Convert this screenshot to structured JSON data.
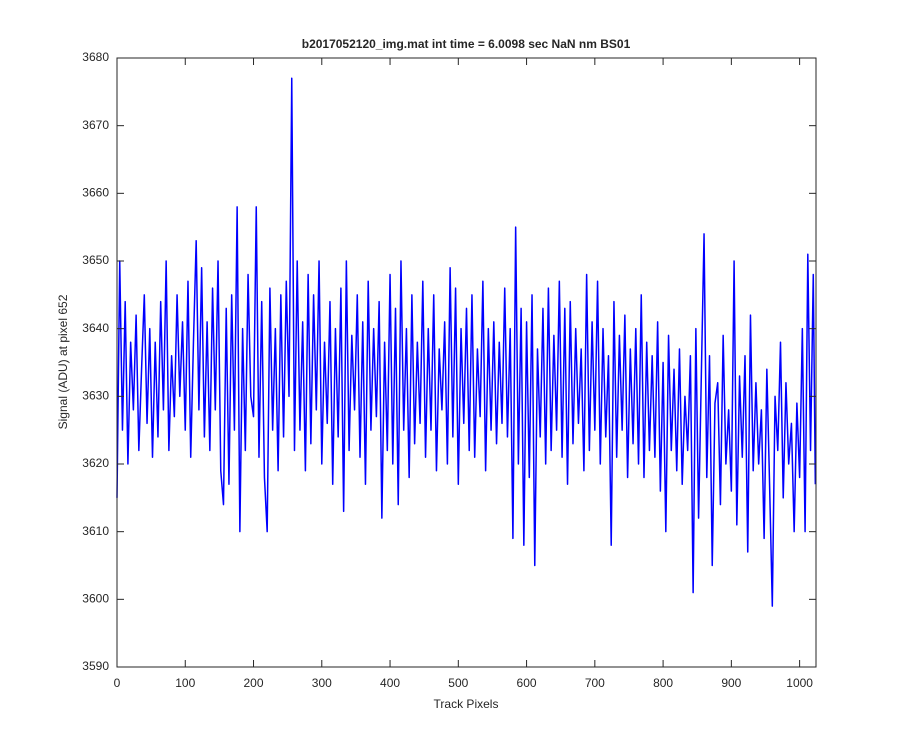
{
  "chart_data": {
    "type": "line",
    "title": "b2017052120_img.mat int time = 6.0098 sec  NaN nm BS01",
    "xlabel": "Track Pixels",
    "ylabel": "Signal (ADU) at pixel 652",
    "xlim": [
      0,
      1024
    ],
    "ylim": [
      3590,
      3680
    ],
    "xticks": [
      0,
      100,
      200,
      300,
      400,
      500,
      600,
      700,
      800,
      900,
      1000
    ],
    "yticks": [
      3590,
      3600,
      3610,
      3620,
      3630,
      3640,
      3650,
      3660,
      3670,
      3680
    ],
    "series": [
      {
        "color": "#0000ff",
        "x": [
          0,
          4,
          8,
          12,
          16,
          20,
          24,
          28,
          32,
          36,
          40,
          44,
          48,
          52,
          56,
          60,
          64,
          68,
          72,
          76,
          80,
          84,
          88,
          92,
          96,
          100,
          104,
          108,
          112,
          116,
          120,
          124,
          128,
          132,
          136,
          140,
          144,
          148,
          152,
          156,
          160,
          164,
          168,
          172,
          176,
          180,
          184,
          188,
          192,
          196,
          200,
          204,
          208,
          212,
          216,
          220,
          224,
          228,
          232,
          236,
          240,
          244,
          248,
          252,
          256,
          260,
          264,
          268,
          272,
          276,
          280,
          284,
          288,
          292,
          296,
          300,
          304,
          308,
          312,
          316,
          320,
          324,
          328,
          332,
          336,
          340,
          344,
          348,
          352,
          356,
          360,
          364,
          368,
          372,
          376,
          380,
          384,
          388,
          392,
          396,
          400,
          404,
          408,
          412,
          416,
          420,
          424,
          428,
          432,
          436,
          440,
          444,
          448,
          452,
          456,
          460,
          464,
          468,
          472,
          476,
          480,
          484,
          488,
          492,
          496,
          500,
          504,
          508,
          512,
          516,
          520,
          524,
          528,
          532,
          536,
          540,
          544,
          548,
          552,
          556,
          560,
          564,
          568,
          572,
          576,
          580,
          584,
          588,
          592,
          596,
          600,
          604,
          608,
          612,
          616,
          620,
          624,
          628,
          632,
          636,
          640,
          644,
          648,
          652,
          656,
          660,
          664,
          668,
          672,
          676,
          680,
          684,
          688,
          692,
          696,
          700,
          704,
          708,
          712,
          716,
          720,
          724,
          728,
          732,
          736,
          740,
          744,
          748,
          752,
          756,
          760,
          764,
          768,
          772,
          776,
          780,
          784,
          788,
          792,
          796,
          800,
          804,
          808,
          812,
          816,
          820,
          824,
          828,
          832,
          836,
          840,
          844,
          848,
          852,
          856,
          860,
          864,
          868,
          872,
          876,
          880,
          884,
          888,
          892,
          896,
          900,
          904,
          908,
          912,
          916,
          920,
          924,
          928,
          932,
          936,
          940,
          944,
          948,
          952,
          956,
          960,
          964,
          968,
          972,
          976,
          980,
          984,
          988,
          992,
          996,
          1000,
          1004,
          1008,
          1012,
          1016,
          1020,
          1023
        ],
        "values": [
          3615,
          3650,
          3625,
          3644,
          3620,
          3638,
          3628,
          3642,
          3622,
          3634,
          3645,
          3626,
          3640,
          3621,
          3638,
          3624,
          3644,
          3628,
          3650,
          3622,
          3636,
          3627,
          3645,
          3630,
          3641,
          3625,
          3647,
          3621,
          3638,
          3653,
          3628,
          3649,
          3624,
          3641,
          3622,
          3646,
          3628,
          3650,
          3619,
          3614,
          3643,
          3617,
          3645,
          3625,
          3658,
          3610,
          3640,
          3622,
          3648,
          3630,
          3627,
          3658,
          3621,
          3644,
          3618,
          3610,
          3646,
          3625,
          3640,
          3619,
          3645,
          3624,
          3647,
          3630,
          3677,
          3622,
          3650,
          3625,
          3641,
          3619,
          3648,
          3623,
          3645,
          3628,
          3650,
          3620,
          3638,
          3626,
          3644,
          3617,
          3640,
          3624,
          3646,
          3613,
          3650,
          3622,
          3639,
          3628,
          3645,
          3621,
          3641,
          3617,
          3647,
          3625,
          3640,
          3627,
          3644,
          3612,
          3638,
          3622,
          3648,
          3620,
          3643,
          3614,
          3650,
          3625,
          3640,
          3618,
          3645,
          3623,
          3638,
          3626,
          3647,
          3621,
          3640,
          3625,
          3645,
          3619,
          3637,
          3628,
          3641,
          3620,
          3649,
          3624,
          3646,
          3617,
          3640,
          3626,
          3643,
          3622,
          3645,
          3621,
          3637,
          3627,
          3647,
          3619,
          3640,
          3625,
          3641,
          3623,
          3638,
          3626,
          3646,
          3624,
          3640,
          3609,
          3655,
          3620,
          3643,
          3608,
          3641,
          3618,
          3645,
          3605,
          3637,
          3624,
          3643,
          3620,
          3646,
          3622,
          3639,
          3625,
          3647,
          3621,
          3643,
          3617,
          3644,
          3623,
          3640,
          3626,
          3637,
          3619,
          3648,
          3622,
          3641,
          3625,
          3647,
          3620,
          3640,
          3624,
          3636,
          3608,
          3644,
          3621,
          3639,
          3625,
          3642,
          3618,
          3637,
          3623,
          3640,
          3620,
          3645,
          3618,
          3638,
          3622,
          3636,
          3621,
          3641,
          3616,
          3635,
          3610,
          3639,
          3622,
          3634,
          3619,
          3637,
          3617,
          3630,
          3622,
          3636,
          3601,
          3640,
          3612,
          3633,
          3654,
          3618,
          3636,
          3605,
          3629,
          3632,
          3614,
          3639,
          3620,
          3628,
          3616,
          3650,
          3611,
          3633,
          3621,
          3636,
          3607,
          3642,
          3619,
          3632,
          3620,
          3628,
          3609,
          3634,
          3617,
          3599,
          3630,
          3622,
          3638,
          3615,
          3632,
          3620,
          3626,
          3610,
          3629,
          3618,
          3640,
          3610,
          3651,
          3622,
          3648,
          3617
        ]
      }
    ]
  }
}
